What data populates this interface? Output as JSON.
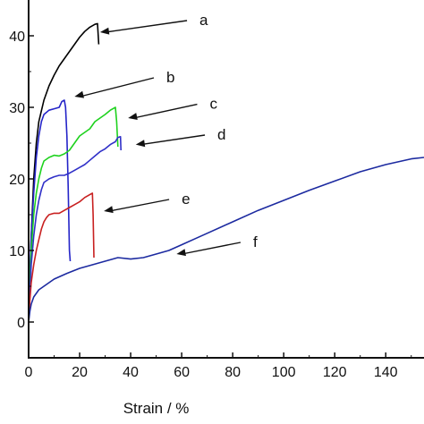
{
  "chart_data": {
    "type": "line",
    "title": "",
    "xlabel": "Strain / %",
    "ylabel": "",
    "xlim": [
      0,
      155
    ],
    "ylim": [
      -5,
      45
    ],
    "x_ticks": [
      0,
      20,
      40,
      60,
      80,
      100,
      120,
      140
    ],
    "y_ticks": [
      0,
      10,
      20,
      30,
      40
    ],
    "x_tick_labels": [
      "0",
      "20",
      "40",
      "60",
      "80",
      "100",
      "120",
      "140"
    ],
    "y_tick_labels": [
      "0",
      "10",
      "20",
      "30",
      "40"
    ],
    "grid": false,
    "legend": "none",
    "series": [
      {
        "name": "a",
        "color": "#000000",
        "points": [
          [
            0,
            0
          ],
          [
            0.5,
            6
          ],
          [
            1,
            12
          ],
          [
            2,
            20
          ],
          [
            3,
            25
          ],
          [
            4,
            28
          ],
          [
            6,
            31
          ],
          [
            8,
            33
          ],
          [
            10,
            34.5
          ],
          [
            12,
            35.8
          ],
          [
            14,
            36.8
          ],
          [
            16,
            37.8
          ],
          [
            18,
            38.8
          ],
          [
            20,
            39.8
          ],
          [
            22,
            40.6
          ],
          [
            24,
            41.2
          ],
          [
            26,
            41.6
          ],
          [
            27,
            41.7
          ],
          [
            27.5,
            38.8
          ]
        ],
        "label_anchor": [
          28,
          40.5
        ],
        "label_pos": [
          67,
          41.5
        ]
      },
      {
        "name": "b",
        "color": "#2424c8",
        "points": [
          [
            0,
            0
          ],
          [
            0.5,
            6
          ],
          [
            1,
            12
          ],
          [
            2,
            18
          ],
          [
            3,
            23
          ],
          [
            4,
            26
          ],
          [
            5,
            28
          ],
          [
            6,
            29
          ],
          [
            8,
            29.6
          ],
          [
            10,
            29.8
          ],
          [
            12,
            30
          ],
          [
            13,
            30.8
          ],
          [
            14,
            31
          ],
          [
            14.5,
            30
          ],
          [
            15,
            26
          ],
          [
            15.5,
            19
          ],
          [
            16,
            10
          ],
          [
            16.3,
            8.5
          ]
        ],
        "label_anchor": [
          18,
          31.5
        ],
        "label_pos": [
          54,
          33.5
        ]
      },
      {
        "name": "c",
        "color": "#1fd21f",
        "points": [
          [
            0,
            0
          ],
          [
            0.5,
            5
          ],
          [
            1,
            10
          ],
          [
            2,
            15
          ],
          [
            3,
            18
          ],
          [
            4,
            20
          ],
          [
            5,
            21.5
          ],
          [
            6,
            22.5
          ],
          [
            8,
            23
          ],
          [
            10,
            23.3
          ],
          [
            12,
            23.2
          ],
          [
            14,
            23.5
          ],
          [
            16,
            24
          ],
          [
            18,
            25
          ],
          [
            20,
            26
          ],
          [
            22,
            26.5
          ],
          [
            24,
            27
          ],
          [
            26,
            28
          ],
          [
            28,
            28.5
          ],
          [
            30,
            29
          ],
          [
            32,
            29.6
          ],
          [
            34,
            30
          ],
          [
            34.5,
            28
          ],
          [
            35,
            24.5
          ]
        ],
        "label_anchor": [
          39,
          28.5
        ],
        "label_pos": [
          71,
          29.8
        ]
      },
      {
        "name": "d",
        "color": "#3030c8",
        "points": [
          [
            0,
            0
          ],
          [
            0.5,
            4
          ],
          [
            1,
            8
          ],
          [
            2,
            12
          ],
          [
            3,
            15
          ],
          [
            4,
            17
          ],
          [
            5,
            18.5
          ],
          [
            6,
            19.5
          ],
          [
            8,
            20
          ],
          [
            10,
            20.3
          ],
          [
            12,
            20.5
          ],
          [
            14,
            20.5
          ],
          [
            16,
            20.8
          ],
          [
            18,
            21.2
          ],
          [
            20,
            21.6
          ],
          [
            22,
            22
          ],
          [
            24,
            22.6
          ],
          [
            26,
            23.2
          ],
          [
            28,
            23.8
          ],
          [
            30,
            24.2
          ],
          [
            32,
            24.8
          ],
          [
            34,
            25.2
          ],
          [
            35,
            25.8
          ],
          [
            36,
            25.9
          ],
          [
            36.2,
            24
          ]
        ],
        "label_anchor": [
          42,
          24.8
        ],
        "label_pos": [
          74,
          25.5
        ]
      },
      {
        "name": "e",
        "color": "#c82020",
        "points": [
          [
            0,
            0
          ],
          [
            0.5,
            3
          ],
          [
            1,
            5.5
          ],
          [
            2,
            8
          ],
          [
            3,
            10
          ],
          [
            4,
            11.5
          ],
          [
            5,
            13
          ],
          [
            6,
            14
          ],
          [
            7,
            14.6
          ],
          [
            8,
            15
          ],
          [
            10,
            15.2
          ],
          [
            12,
            15.2
          ],
          [
            14,
            15.6
          ],
          [
            16,
            16
          ],
          [
            18,
            16.4
          ],
          [
            20,
            16.8
          ],
          [
            22,
            17.4
          ],
          [
            24,
            17.8
          ],
          [
            25,
            18
          ],
          [
            25.3,
            15
          ],
          [
            25.6,
            9
          ]
        ],
        "label_anchor": [
          29.5,
          15.5
        ],
        "label_pos": [
          60,
          16.5
        ]
      },
      {
        "name": "f",
        "color": "#1c2aa0",
        "points": [
          [
            0,
            0
          ],
          [
            0.5,
            1.5
          ],
          [
            1,
            2.5
          ],
          [
            2,
            3.5
          ],
          [
            4,
            4.5
          ],
          [
            6,
            5
          ],
          [
            8,
            5.5
          ],
          [
            10,
            6
          ],
          [
            15,
            6.8
          ],
          [
            20,
            7.5
          ],
          [
            25,
            8
          ],
          [
            30,
            8.5
          ],
          [
            35,
            9
          ],
          [
            40,
            8.8
          ],
          [
            45,
            9
          ],
          [
            50,
            9.5
          ],
          [
            55,
            10
          ],
          [
            60,
            10.8
          ],
          [
            65,
            11.6
          ],
          [
            70,
            12.4
          ],
          [
            80,
            14
          ],
          [
            90,
            15.6
          ],
          [
            100,
            17
          ],
          [
            110,
            18.4
          ],
          [
            120,
            19.7
          ],
          [
            130,
            21
          ],
          [
            140,
            22
          ],
          [
            150,
            22.8
          ],
          [
            155,
            23
          ]
        ],
        "label_anchor": [
          58,
          9.5
        ],
        "label_pos": [
          88,
          10.5
        ]
      }
    ]
  }
}
